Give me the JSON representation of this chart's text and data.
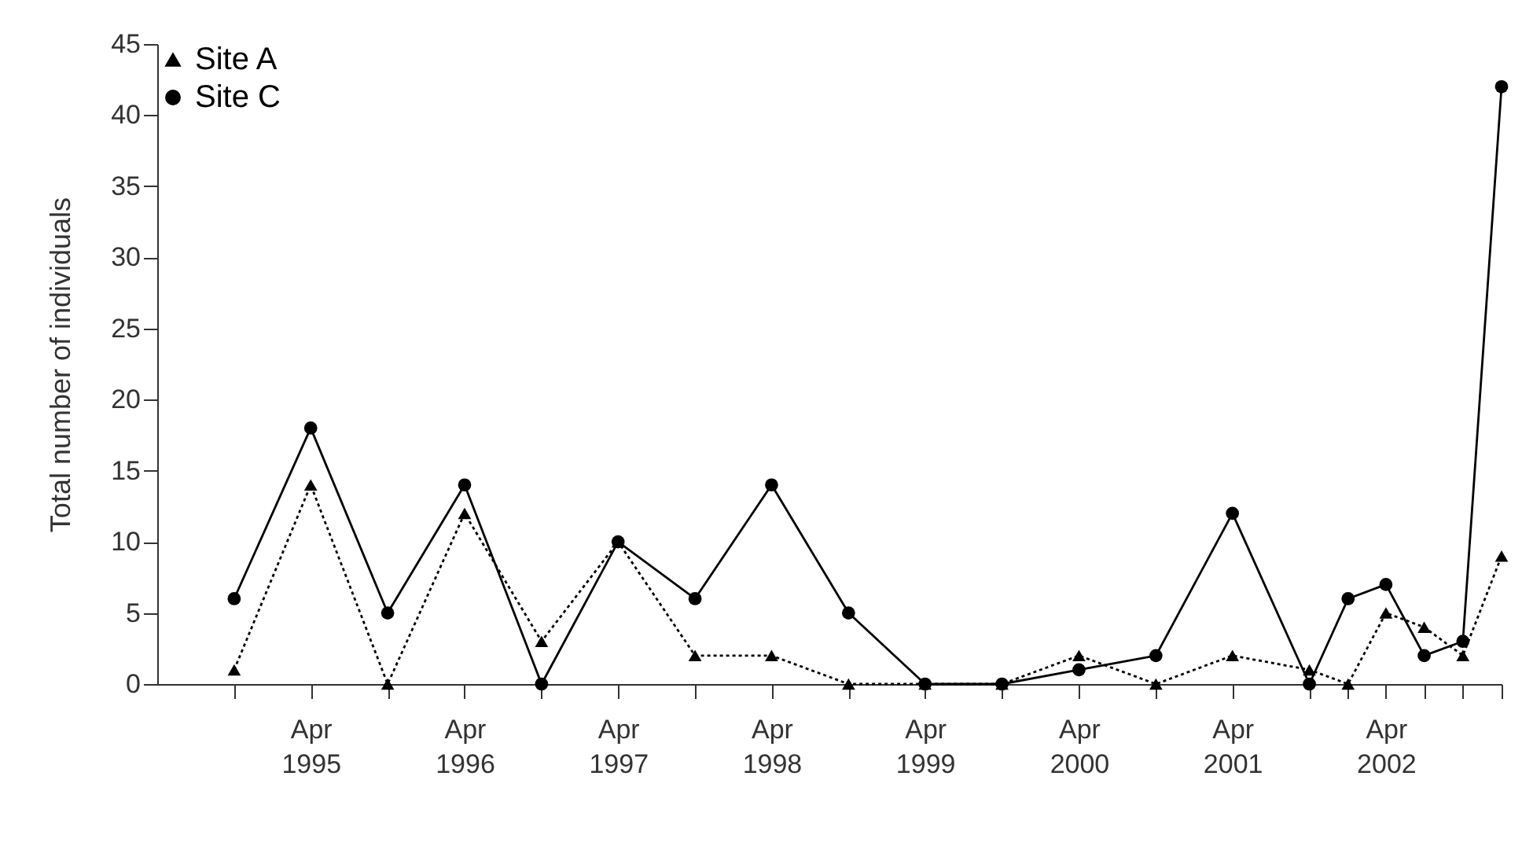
{
  "chart_data": {
    "type": "line",
    "ylabel": "Total number of individuals",
    "x": [
      "1994-10",
      "1995-04",
      "1995-10",
      "1996-04",
      "1996-10",
      "1997-04",
      "1997-10",
      "1998-04",
      "1998-10",
      "1999-04",
      "1999-10",
      "2000-04",
      "2000-10",
      "2001-04",
      "2001-10",
      "2002-01",
      "2002-04",
      "2002-07",
      "2002-10",
      "2003-01"
    ],
    "series": [
      {
        "name": "Site A",
        "color": "#000000",
        "marker": "triangle",
        "line_style": "dotted",
        "values": [
          1,
          14,
          0,
          12,
          3,
          10,
          2,
          2,
          0,
          0,
          0,
          2,
          0,
          2,
          1,
          0,
          5,
          4,
          2,
          9
        ]
      },
      {
        "name": "Site C",
        "color": "#000000",
        "marker": "circle",
        "line_style": "solid",
        "values": [
          6,
          18,
          5,
          14,
          0,
          10,
          6,
          14,
          5,
          0,
          0,
          1,
          2,
          12,
          0,
          6,
          7,
          2,
          3,
          42
        ]
      }
    ],
    "xlim": [
      "1994-04",
      "2003-01"
    ],
    "xticks": [
      {
        "value": "1994-10",
        "label": null
      },
      {
        "value": "1995-04",
        "label": "Apr 1995"
      },
      {
        "value": "1995-10",
        "label": null
      },
      {
        "value": "1996-04",
        "label": "Apr 1996"
      },
      {
        "value": "1996-10",
        "label": null
      },
      {
        "value": "1997-04",
        "label": "Apr 1997"
      },
      {
        "value": "1997-10",
        "label": null
      },
      {
        "value": "1998-04",
        "label": "Apr 1998"
      },
      {
        "value": "1998-10",
        "label": null
      },
      {
        "value": "1999-04",
        "label": "Apr 1999"
      },
      {
        "value": "1999-10",
        "label": null
      },
      {
        "value": "2000-04",
        "label": "Apr 2000"
      },
      {
        "value": "2000-10",
        "label": null
      },
      {
        "value": "2001-04",
        "label": "Apr 2001"
      },
      {
        "value": "2001-10",
        "label": null
      },
      {
        "value": "2002-01",
        "label": null
      },
      {
        "value": "2002-04",
        "label": "Apr 2002"
      },
      {
        "value": "2002-07",
        "label": null
      },
      {
        "value": "2002-10",
        "label": null
      },
      {
        "value": "2003-01",
        "label": null
      }
    ],
    "ylim": [
      0,
      45
    ],
    "yticks": [
      0,
      5,
      10,
      15,
      20,
      25,
      30,
      35,
      40,
      45
    ],
    "grid": false,
    "legend": "top left"
  }
}
